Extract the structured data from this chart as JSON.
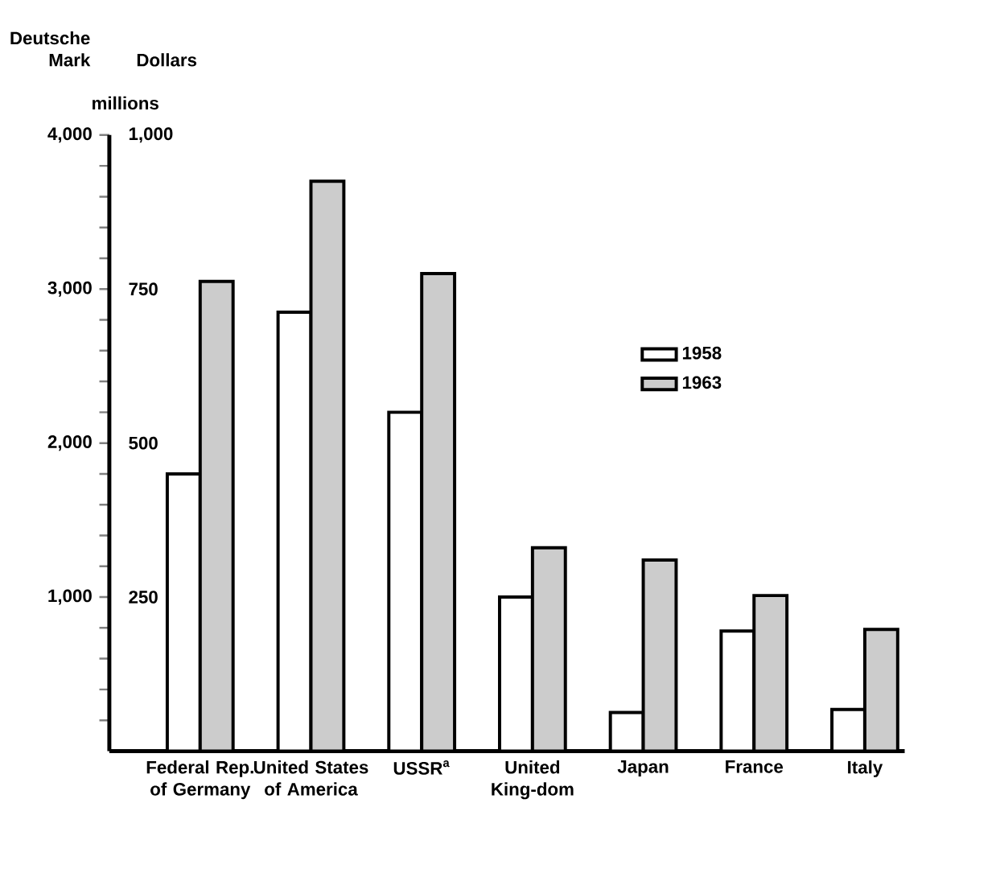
{
  "chart_data": {
    "type": "bar",
    "ylabel": "Deutsche Mark",
    "y2label": "Dollars",
    "annotations": [
      "millions"
    ],
    "categories": [
      "Federal Rep. of Germany",
      "United States of America",
      "USSR$^{a}$",
      "United King-dom",
      "Japan",
      "France",
      "Italy"
    ],
    "series": [
      {
        "name": "1958",
        "color": "#ffffff",
        "values": [
          1800,
          2850,
          2200,
          1000,
          250,
          780,
          270
        ]
      },
      {
        "name": "1963",
        "color": "#cccccc",
        "values": [
          3050,
          3700,
          3100,
          1320,
          1240,
          1010,
          790
        ]
      }
    ],
    "ylim": [
      0,
      4000
    ],
    "yticks": [
      {
        "value": 200,
        "label": null
      },
      {
        "value": 400,
        "label": null
      },
      {
        "value": 600,
        "label": null
      },
      {
        "value": 800,
        "label": null
      },
      {
        "value": 1000,
        "label": "1,000"
      },
      {
        "value": 1200,
        "label": null
      },
      {
        "value": 1400,
        "label": null
      },
      {
        "value": 1600,
        "label": null
      },
      {
        "value": 1800,
        "label": null
      },
      {
        "value": 2000,
        "label": "2,000"
      },
      {
        "value": 2200,
        "label": null
      },
      {
        "value": 2400,
        "label": null
      },
      {
        "value": 2600,
        "label": null
      },
      {
        "value": 2800,
        "label": null
      },
      {
        "value": 3000,
        "label": "3,000"
      },
      {
        "value": 3200,
        "label": null
      },
      {
        "value": 3400,
        "label": null
      },
      {
        "value": 3600,
        "label": null
      },
      {
        "value": 3800,
        "label": null
      },
      {
        "value": 4000,
        "label": "4,000"
      }
    ],
    "y2lim": [
      0,
      1000
    ],
    "y2ticks": [
      250,
      500,
      750,
      {
        "value": 1000,
        "label": "1,000"
      }
    ],
    "legend": "right",
    "grid": false
  }
}
